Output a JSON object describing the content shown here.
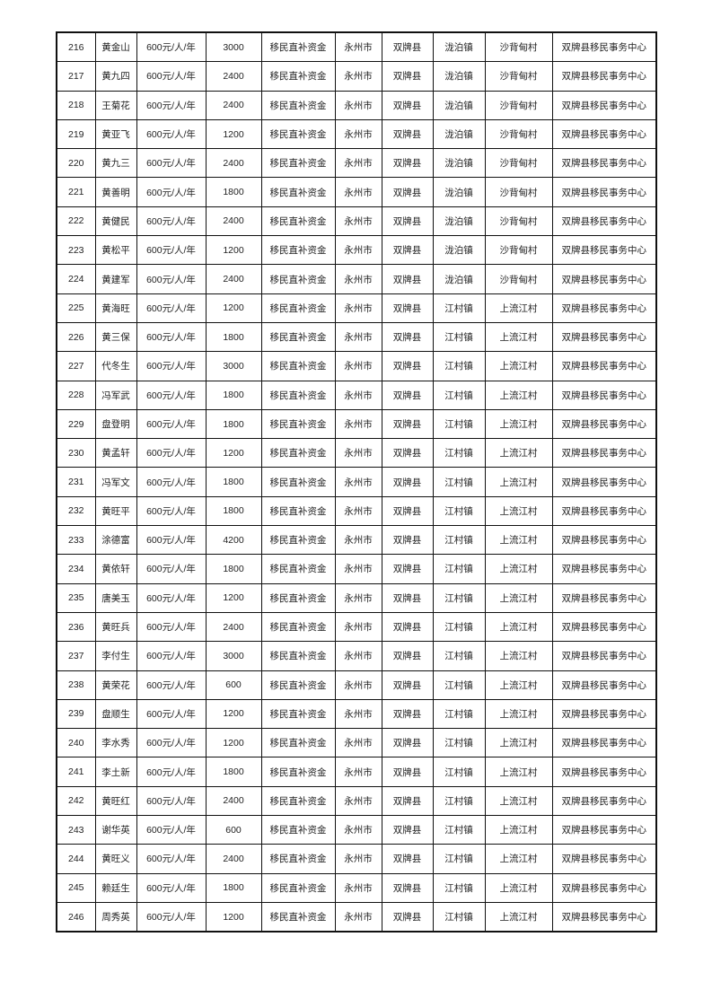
{
  "table": {
    "columns": [
      "no",
      "name",
      "standard",
      "amount",
      "fund_type",
      "city",
      "county",
      "town",
      "village",
      "agency"
    ],
    "rows": [
      [
        "216",
        "黄金山",
        "600元/人/年",
        "3000",
        "移民直补资金",
        "永州市",
        "双牌县",
        "泷泊镇",
        "沙背甸村",
        "双牌县移民事务中心"
      ],
      [
        "217",
        "黄九四",
        "600元/人/年",
        "2400",
        "移民直补资金",
        "永州市",
        "双牌县",
        "泷泊镇",
        "沙背甸村",
        "双牌县移民事务中心"
      ],
      [
        "218",
        "王菊花",
        "600元/人/年",
        "2400",
        "移民直补资金",
        "永州市",
        "双牌县",
        "泷泊镇",
        "沙背甸村",
        "双牌县移民事务中心"
      ],
      [
        "219",
        "黄亚飞",
        "600元/人/年",
        "1200",
        "移民直补资金",
        "永州市",
        "双牌县",
        "泷泊镇",
        "沙背甸村",
        "双牌县移民事务中心"
      ],
      [
        "220",
        "黄九三",
        "600元/人/年",
        "2400",
        "移民直补资金",
        "永州市",
        "双牌县",
        "泷泊镇",
        "沙背甸村",
        "双牌县移民事务中心"
      ],
      [
        "221",
        "黄善明",
        "600元/人/年",
        "1800",
        "移民直补资金",
        "永州市",
        "双牌县",
        "泷泊镇",
        "沙背甸村",
        "双牌县移民事务中心"
      ],
      [
        "222",
        "黄健民",
        "600元/人/年",
        "2400",
        "移民直补资金",
        "永州市",
        "双牌县",
        "泷泊镇",
        "沙背甸村",
        "双牌县移民事务中心"
      ],
      [
        "223",
        "黄松平",
        "600元/人/年",
        "1200",
        "移民直补资金",
        "永州市",
        "双牌县",
        "泷泊镇",
        "沙背甸村",
        "双牌县移民事务中心"
      ],
      [
        "224",
        "黄建军",
        "600元/人/年",
        "2400",
        "移民直补资金",
        "永州市",
        "双牌县",
        "泷泊镇",
        "沙背甸村",
        "双牌县移民事务中心"
      ],
      [
        "225",
        "黄海旺",
        "600元/人/年",
        "1200",
        "移民直补资金",
        "永州市",
        "双牌县",
        "江村镇",
        "上流江村",
        "双牌县移民事务中心"
      ],
      [
        "226",
        "黄三保",
        "600元/人/年",
        "1800",
        "移民直补资金",
        "永州市",
        "双牌县",
        "江村镇",
        "上流江村",
        "双牌县移民事务中心"
      ],
      [
        "227",
        "代冬生",
        "600元/人/年",
        "3000",
        "移民直补资金",
        "永州市",
        "双牌县",
        "江村镇",
        "上流江村",
        "双牌县移民事务中心"
      ],
      [
        "228",
        "冯军武",
        "600元/人/年",
        "1800",
        "移民直补资金",
        "永州市",
        "双牌县",
        "江村镇",
        "上流江村",
        "双牌县移民事务中心"
      ],
      [
        "229",
        "盘登明",
        "600元/人/年",
        "1800",
        "移民直补资金",
        "永州市",
        "双牌县",
        "江村镇",
        "上流江村",
        "双牌县移民事务中心"
      ],
      [
        "230",
        "黄孟轩",
        "600元/人/年",
        "1200",
        "移民直补资金",
        "永州市",
        "双牌县",
        "江村镇",
        "上流江村",
        "双牌县移民事务中心"
      ],
      [
        "231",
        "冯军文",
        "600元/人/年",
        "1800",
        "移民直补资金",
        "永州市",
        "双牌县",
        "江村镇",
        "上流江村",
        "双牌县移民事务中心"
      ],
      [
        "232",
        "黄旺平",
        "600元/人/年",
        "1800",
        "移民直补资金",
        "永州市",
        "双牌县",
        "江村镇",
        "上流江村",
        "双牌县移民事务中心"
      ],
      [
        "233",
        "涂德富",
        "600元/人/年",
        "4200",
        "移民直补资金",
        "永州市",
        "双牌县",
        "江村镇",
        "上流江村",
        "双牌县移民事务中心"
      ],
      [
        "234",
        "黄依轩",
        "600元/人/年",
        "1800",
        "移民直补资金",
        "永州市",
        "双牌县",
        "江村镇",
        "上流江村",
        "双牌县移民事务中心"
      ],
      [
        "235",
        "唐美玉",
        "600元/人/年",
        "1200",
        "移民直补资金",
        "永州市",
        "双牌县",
        "江村镇",
        "上流江村",
        "双牌县移民事务中心"
      ],
      [
        "236",
        "黄旺兵",
        "600元/人/年",
        "2400",
        "移民直补资金",
        "永州市",
        "双牌县",
        "江村镇",
        "上流江村",
        "双牌县移民事务中心"
      ],
      [
        "237",
        "李付生",
        "600元/人/年",
        "3000",
        "移民直补资金",
        "永州市",
        "双牌县",
        "江村镇",
        "上流江村",
        "双牌县移民事务中心"
      ],
      [
        "238",
        "黄荣花",
        "600元/人/年",
        "600",
        "移民直补资金",
        "永州市",
        "双牌县",
        "江村镇",
        "上流江村",
        "双牌县移民事务中心"
      ],
      [
        "239",
        "盘顺生",
        "600元/人/年",
        "1200",
        "移民直补资金",
        "永州市",
        "双牌县",
        "江村镇",
        "上流江村",
        "双牌县移民事务中心"
      ],
      [
        "240",
        "李水秀",
        "600元/人/年",
        "1200",
        "移民直补资金",
        "永州市",
        "双牌县",
        "江村镇",
        "上流江村",
        "双牌县移民事务中心"
      ],
      [
        "241",
        "李土新",
        "600元/人/年",
        "1800",
        "移民直补资金",
        "永州市",
        "双牌县",
        "江村镇",
        "上流江村",
        "双牌县移民事务中心"
      ],
      [
        "242",
        "黄旺红",
        "600元/人/年",
        "2400",
        "移民直补资金",
        "永州市",
        "双牌县",
        "江村镇",
        "上流江村",
        "双牌县移民事务中心"
      ],
      [
        "243",
        "谢华英",
        "600元/人/年",
        "600",
        "移民直补资金",
        "永州市",
        "双牌县",
        "江村镇",
        "上流江村",
        "双牌县移民事务中心"
      ],
      [
        "244",
        "黄旺义",
        "600元/人/年",
        "2400",
        "移民直补资金",
        "永州市",
        "双牌县",
        "江村镇",
        "上流江村",
        "双牌县移民事务中心"
      ],
      [
        "245",
        "赖廷生",
        "600元/人/年",
        "1800",
        "移民直补资金",
        "永州市",
        "双牌县",
        "江村镇",
        "上流江村",
        "双牌县移民事务中心"
      ],
      [
        "246",
        "周秀英",
        "600元/人/年",
        "1200",
        "移民直补资金",
        "永州市",
        "双牌县",
        "江村镇",
        "上流江村",
        "双牌县移民事务中心"
      ]
    ]
  }
}
